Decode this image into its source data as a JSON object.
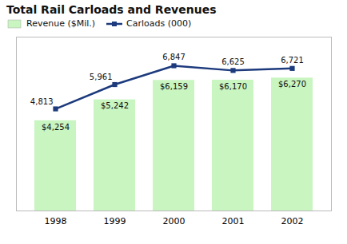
{
  "chart_data": {
    "type": "bar",
    "title": "Total Rail Carloads and Revenues",
    "categories": [
      "1998",
      "1999",
      "2000",
      "2001",
      "2002"
    ],
    "series": [
      {
        "name": "Revenue ($Mil.)",
        "type": "bar",
        "color": "#c8f5c0",
        "values": [
          4254,
          5242,
          6159,
          6170,
          6270
        ],
        "value_labels": [
          "$4,254",
          "$5,242",
          "$6,159",
          "$6,170",
          "$6,270"
        ]
      },
      {
        "name": "Carloads (000)",
        "type": "line",
        "color": "#1c3a7c",
        "marker": "square",
        "values": [
          4813,
          5961,
          6847,
          6625,
          6721
        ],
        "value_labels": [
          "4,813",
          "5,961",
          "6,847",
          "6,625",
          "6,721"
        ]
      }
    ],
    "ylim": [
      0,
      8200
    ],
    "tick_labels": "x",
    "grid": false,
    "legend": "top",
    "data_labels": true
  }
}
